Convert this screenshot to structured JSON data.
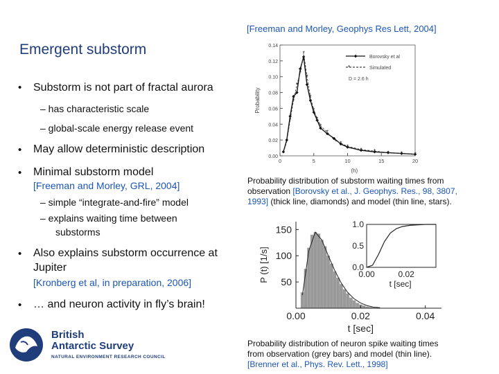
{
  "top_reference": "[Freeman and Morley, Geophys Res Lett, 2004]",
  "title": "Emergent substorm",
  "bullets": {
    "b1": "Substorm is not part of fractal aurora",
    "b1_sub1": "– has characteristic scale",
    "b1_sub2": "– global-scale energy release event",
    "b2": "May allow deterministic description",
    "b3": "Minimal substorm model",
    "b3_ref": "[Freeman and Morley, GRL, 2004]",
    "b3_sub1": "– simple “integrate-and-fire” model",
    "b3_sub2a": "– explains waiting time between",
    "b3_sub2b": "substorms",
    "b4a": "Also explains substorm occurrence at",
    "b4b": "Jupiter",
    "b4_ref": "[Kronberg et al, in preparation, 2006]",
    "b5": "… and neuron activity in fly’s brain!",
    "dot": "•"
  },
  "caption1": {
    "line1": "Probability distribution of substorm waiting times from",
    "line2a": "observation ",
    "line2_ref": "[Borovsky et al., J. Geophys. Res., 98, 3807,",
    "line3_ref": "1993]",
    "line3b": " (thick line, diamonds) and model (thin line, stars)."
  },
  "caption2": {
    "line1": "Probability distribution of neuron spike waiting times",
    "line2": "from observation (grey bars) and model (thin line).",
    "line3_ref": "[Brenner et al., Phys. Rev. Lett., 1998]"
  },
  "logo": {
    "line1": "British",
    "line2": "Antarctic Survey",
    "line3": "NATURAL ENVIRONMENT RESEARCH COUNCIL"
  },
  "colors": {
    "title": "#1f3d7a",
    "reference": "#1a56b8",
    "bars": "#999999"
  },
  "chart_data": [
    {
      "type": "line",
      "ylabel": "Probability",
      "xlabel": "(h)",
      "x_ticks": [
        "0",
        "5",
        "10",
        "15",
        "20"
      ],
      "y_ticks": [
        "0.00",
        "0.02",
        "0.04",
        "0.06",
        "0.08",
        "0.10",
        "0.12",
        "0.14"
      ],
      "legend": [
        "Borovsky et al",
        "Simulated",
        "D = 2.6 h"
      ],
      "legend_position": "top-right",
      "series": [
        {
          "name": "Borovsky et al",
          "x": [
            0.5,
            1,
            1.5,
            2,
            2.5,
            3,
            3.5,
            4,
            4.5,
            5,
            5.5,
            6,
            7,
            8,
            9,
            10,
            12,
            14,
            16,
            18,
            20
          ],
          "y": [
            0.005,
            0.02,
            0.05,
            0.075,
            0.08,
            0.11,
            0.125,
            0.09,
            0.07,
            0.055,
            0.045,
            0.035,
            0.028,
            0.022,
            0.015,
            0.011,
            0.007,
            0.005,
            0.004,
            0.003,
            0.002
          ]
        },
        {
          "name": "Simulated",
          "x": [
            0.5,
            1,
            1.5,
            2,
            2.5,
            3,
            3.5,
            4,
            4.5,
            5,
            5.5,
            6,
            7,
            8,
            9,
            10,
            12,
            14,
            16,
            18,
            20
          ],
          "y": [
            0.004,
            0.018,
            0.045,
            0.07,
            0.09,
            0.105,
            0.13,
            0.1,
            0.075,
            0.058,
            0.047,
            0.038,
            0.03,
            0.02,
            0.016,
            0.012,
            0.008,
            0.006,
            0.004,
            0.003,
            0.002
          ]
        }
      ],
      "xlim": [
        0,
        20
      ],
      "ylim": [
        0,
        0.14
      ]
    },
    {
      "type": "bar",
      "ylabel": "P (t) [1/s]",
      "xlabel": "t [sec]",
      "x_ticks": [
        "0.00",
        "0.02",
        "0.04"
      ],
      "y_ticks": [
        "50",
        "100",
        "150"
      ],
      "xlim": [
        0,
        0.045
      ],
      "ylim": [
        0,
        165
      ],
      "bins_x": [
        0.002,
        0.003,
        0.004,
        0.005,
        0.006,
        0.007,
        0.008,
        0.009,
        0.01,
        0.011,
        0.012,
        0.013,
        0.014,
        0.015,
        0.016,
        0.017,
        0.018,
        0.019,
        0.02,
        0.021,
        0.022,
        0.023,
        0.024
      ],
      "values": [
        30,
        75,
        115,
        140,
        145,
        142,
        130,
        118,
        100,
        85,
        70,
        58,
        46,
        36,
        28,
        20,
        15,
        10,
        7,
        5,
        3,
        2,
        1
      ],
      "model_line_x": [
        0.002,
        0.004,
        0.006,
        0.008,
        0.01,
        0.012,
        0.014,
        0.016,
        0.018,
        0.02,
        0.022,
        0.024,
        0.026
      ],
      "model_line_y": [
        25,
        110,
        145,
        130,
        100,
        72,
        48,
        30,
        18,
        10,
        5,
        2,
        1
      ],
      "inset": {
        "type": "line",
        "xlabel": "t [sec]",
        "x_ticks": [
          "0.00",
          "0.02"
        ],
        "y_ticks": [
          "0.0",
          "0.5",
          "1.0"
        ],
        "xlim": [
          0,
          0.035
        ],
        "ylim": [
          0,
          1
        ],
        "x": [
          0.0,
          0.003,
          0.006,
          0.009,
          0.012,
          0.015,
          0.018,
          0.022,
          0.026,
          0.03,
          0.035
        ],
        "y": [
          0.0,
          0.05,
          0.3,
          0.6,
          0.8,
          0.9,
          0.95,
          0.98,
          0.99,
          1.0,
          1.0
        ]
      }
    }
  ]
}
